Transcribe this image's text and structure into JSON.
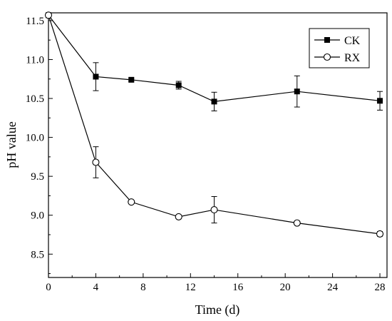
{
  "chart_data": {
    "type": "line",
    "title": "",
    "xlabel": "Time (d)",
    "ylabel": "pH value",
    "xlim": [
      0,
      28.6
    ],
    "ylim": [
      8.2,
      11.6
    ],
    "xticks": [
      0,
      4,
      8,
      12,
      16,
      20,
      24,
      28
    ],
    "yticks": [
      8.5,
      9.0,
      9.5,
      10.0,
      10.5,
      11.0,
      11.5
    ],
    "xtick_labels": [
      "0",
      "4",
      "8",
      "12",
      "16",
      "20",
      "24",
      "28"
    ],
    "ytick_labels": [
      "8.5",
      "9.0",
      "9.5",
      "10.0",
      "10.5",
      "11.0",
      "11.5"
    ],
    "grid": false,
    "legend_position": "top-right",
    "x": [
      0,
      4,
      7,
      11,
      14,
      21,
      28
    ],
    "series": [
      {
        "name": "CK",
        "marker": "filled-square",
        "color": "#000000",
        "values": [
          11.57,
          10.78,
          10.74,
          10.67,
          10.46,
          10.59,
          10.47
        ],
        "errors": [
          0,
          0.18,
          0.02,
          0.05,
          0.12,
          0.2,
          0.12
        ]
      },
      {
        "name": "RX",
        "marker": "open-circle",
        "color": "#000000",
        "values": [
          11.57,
          9.68,
          9.17,
          8.98,
          9.07,
          8.9,
          8.76
        ],
        "errors": [
          0,
          0.2,
          0.02,
          0.02,
          0.17,
          0.02,
          0.03
        ]
      }
    ]
  }
}
